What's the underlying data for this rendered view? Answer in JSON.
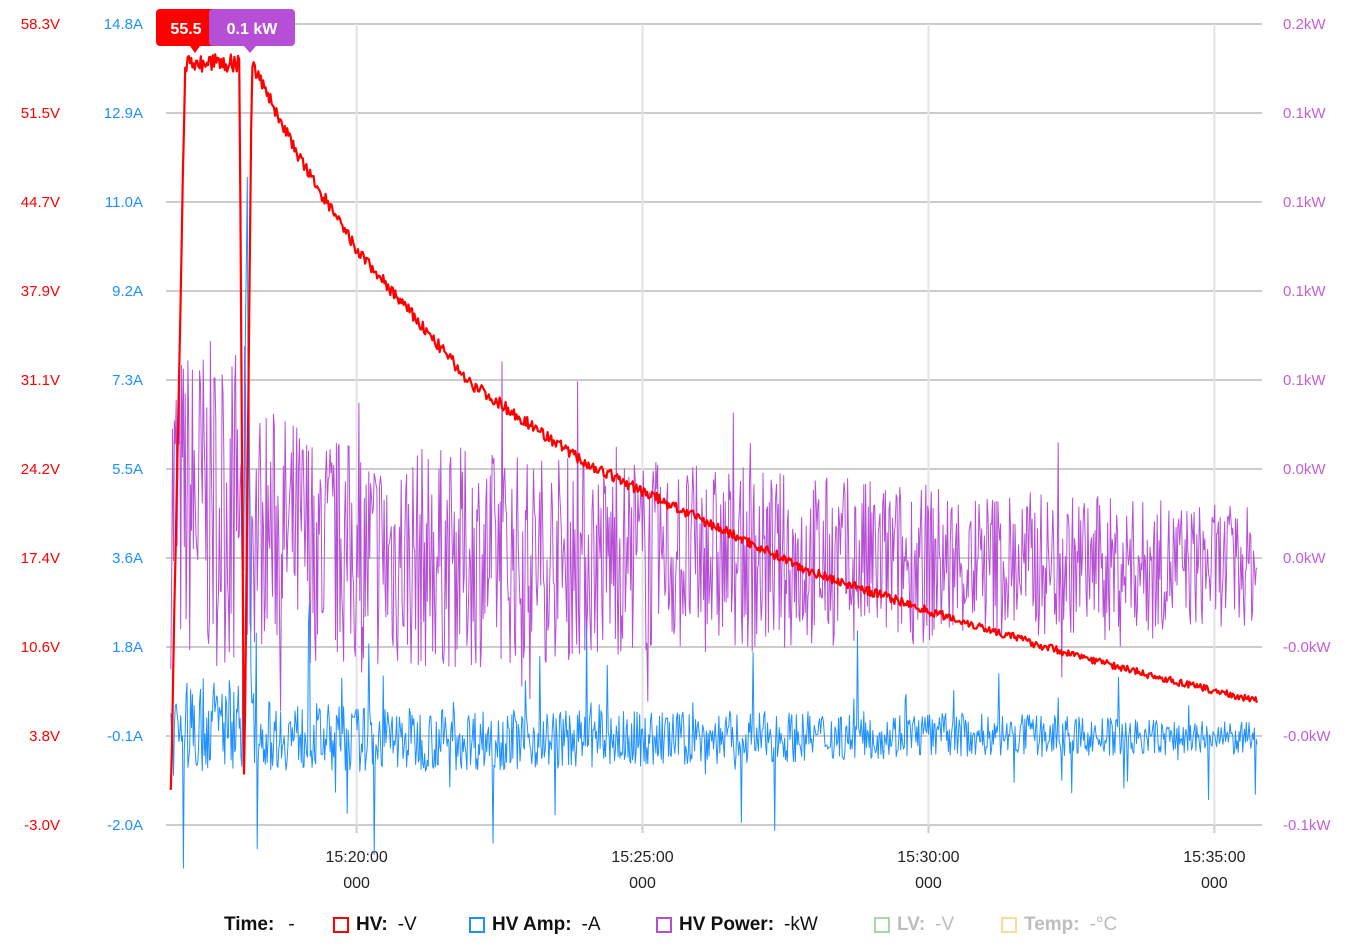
{
  "tooltip": {
    "hv_label": "55.5",
    "power_label": "0.1 kW",
    "hv_color": "#ff0000",
    "power_color": "#b64fd6"
  },
  "legend": {
    "time": {
      "name": "Time:",
      "value": "-"
    },
    "items": [
      {
        "name": "HV:",
        "value": "-V",
        "color": "#ff0000",
        "muted": false
      },
      {
        "name": "HV Amp:",
        "value": "-A",
        "color": "#1e90ff",
        "muted": false
      },
      {
        "name": "HV Power:",
        "value": "-kW",
        "color": "#b64fd6",
        "muted": false
      },
      {
        "name": "LV:",
        "value": "-V",
        "color": "#a8d8a8",
        "muted": true
      },
      {
        "name": "Temp:",
        "value": "-°C",
        "color": "#f7dca0",
        "muted": true
      }
    ]
  },
  "chart_data": {
    "type": "line",
    "grid": true,
    "x_axis": {
      "ticks": [
        "15:20:00",
        "15:25:00",
        "15:30:00",
        "15:35:00"
      ],
      "sub_ticks": [
        "000",
        "000",
        "000",
        "000"
      ],
      "range": [
        "15:16:40",
        "15:35:50"
      ]
    },
    "y_axes": [
      {
        "id": "voltage",
        "color": "#ff0000",
        "ticks": [
          "58.3V",
          "51.5V",
          "44.7V",
          "37.9V",
          "31.1V",
          "24.2V",
          "17.4V",
          "10.6V",
          "3.8V",
          "-3.0V"
        ],
        "range": [
          -3.0,
          58.3
        ]
      },
      {
        "id": "current",
        "color": "#1e90ff",
        "ticks": [
          "14.8A",
          "12.9A",
          "11.0A",
          "9.2A",
          "7.3A",
          "5.5A",
          "3.6A",
          "1.8A",
          "-0.1A",
          "-2.0A"
        ],
        "range": [
          -2.0,
          14.8
        ]
      },
      {
        "id": "power",
        "color": "#c35fd6",
        "ticks": [
          "0.2kW",
          "0.1kW",
          "0.1kW",
          "0.1kW",
          "0.1kW",
          "0.0kW",
          "0.0kW",
          "-0.0kW",
          "-0.0kW",
          "-0.1kW"
        ],
        "range": [
          -0.1,
          0.2
        ]
      }
    ],
    "series": [
      {
        "name": "HV",
        "axis": "voltage",
        "color": "#ff0000",
        "x": [
          "15:16:45",
          "15:17:00",
          "15:17:57",
          "15:18:02",
          "15:18:10",
          "15:19:00",
          "15:20:00",
          "15:22:00",
          "15:24:00",
          "15:26:00",
          "15:28:00",
          "15:30:00",
          "15:32:00",
          "15:34:00",
          "15:35:45"
        ],
        "values": [
          -0.8,
          55.3,
          55.3,
          -0.8,
          55.3,
          48.0,
          41.0,
          30.8,
          24.7,
          20.4,
          16.3,
          13.4,
          10.7,
          8.3,
          6.5
        ]
      },
      {
        "name": "HV Amp",
        "axis": "current",
        "color": "#1e90ff",
        "x": [
          "15:16:45",
          "15:18:00",
          "15:18:05",
          "15:18:10",
          "15:20:00",
          "15:25:00",
          "15:30:00",
          "15:35:45"
        ],
        "values": [
          0.0,
          0.2,
          11.3,
          -0.1,
          -0.2,
          -0.2,
          -0.1,
          -0.2
        ]
      },
      {
        "name": "HV Power",
        "axis": "power",
        "color": "#b64fd6",
        "x": [
          "15:16:45",
          "15:18:00",
          "15:18:10",
          "15:20:00",
          "15:25:00",
          "15:30:00",
          "15:35:45"
        ],
        "values": [
          0.02,
          0.02,
          0.013,
          0.0,
          0.0,
          -0.002,
          -0.003
        ]
      }
    ]
  }
}
